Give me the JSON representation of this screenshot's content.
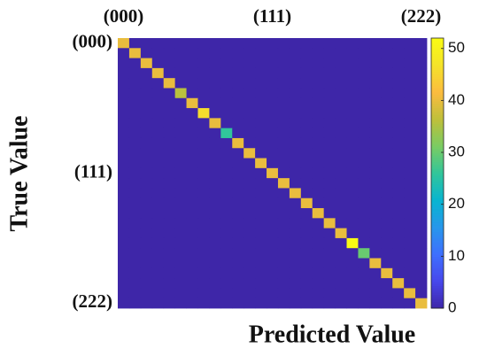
{
  "chart_data": {
    "type": "heatmap",
    "x_label": "Predicted Value",
    "y_label": "True Value",
    "x_categories": [
      "(000)",
      null,
      null,
      null,
      null,
      null,
      null,
      null,
      null,
      null,
      null,
      null,
      null,
      "(111)",
      null,
      null,
      null,
      null,
      null,
      null,
      null,
      null,
      null,
      null,
      null,
      null,
      "(222)"
    ],
    "y_categories": [
      "(000)",
      null,
      null,
      null,
      null,
      null,
      null,
      null,
      null,
      null,
      null,
      null,
      null,
      "(111)",
      null,
      null,
      null,
      null,
      null,
      null,
      null,
      null,
      null,
      null,
      null,
      null,
      "(222)"
    ],
    "colormap": "parula",
    "clim": [
      0,
      52
    ],
    "cticks": [
      0,
      10,
      20,
      30,
      40,
      50
    ],
    "values": [
      [
        40,
        0,
        0,
        0,
        0,
        0,
        0,
        0,
        0,
        0,
        0,
        0,
        0,
        0,
        0,
        0,
        0,
        0,
        0,
        0,
        0,
        0,
        0,
        0,
        0,
        0,
        0
      ],
      [
        0,
        40,
        0,
        0,
        0,
        0,
        0,
        0,
        0,
        0,
        0,
        0,
        0,
        0,
        0,
        0,
        0,
        0,
        0,
        0,
        0,
        0,
        0,
        0,
        0,
        0,
        0
      ],
      [
        0,
        0,
        40,
        0,
        0,
        0,
        0,
        0,
        0,
        0,
        0,
        0,
        0,
        0,
        0,
        0,
        0,
        0,
        0,
        0,
        0,
        0,
        0,
        0,
        0,
        0,
        0
      ],
      [
        0,
        0,
        0,
        40,
        0,
        0,
        0,
        0,
        0,
        0,
        0,
        0,
        0,
        0,
        0,
        0,
        0,
        0,
        0,
        0,
        0,
        0,
        0,
        0,
        0,
        0,
        0
      ],
      [
        0,
        0,
        0,
        0,
        40,
        0,
        0,
        0,
        0,
        0,
        0,
        0,
        0,
        0,
        0,
        0,
        0,
        0,
        0,
        0,
        0,
        0,
        0,
        0,
        0,
        0,
        0
      ],
      [
        0,
        0,
        0,
        0,
        0,
        36,
        0,
        0,
        0,
        0,
        0,
        0,
        0,
        0,
        0,
        0,
        0,
        0,
        0,
        0,
        0,
        0,
        0,
        0,
        0,
        0,
        0
      ],
      [
        0,
        0,
        0,
        0,
        0,
        0,
        40,
        0,
        0,
        0,
        0,
        0,
        0,
        0,
        0,
        0,
        0,
        0,
        0,
        0,
        0,
        0,
        0,
        0,
        0,
        0,
        0
      ],
      [
        0,
        0,
        0,
        0,
        0,
        0,
        0,
        46,
        0,
        0,
        0,
        0,
        0,
        0,
        0,
        0,
        0,
        0,
        0,
        0,
        0,
        0,
        0,
        0,
        0,
        0,
        0
      ],
      [
        0,
        0,
        0,
        0,
        0,
        0,
        0,
        0,
        40,
        0,
        0,
        0,
        0,
        0,
        0,
        0,
        0,
        0,
        0,
        0,
        0,
        0,
        0,
        0,
        0,
        0,
        0
      ],
      [
        0,
        0,
        0,
        0,
        0,
        0,
        0,
        0,
        0,
        26,
        0,
        0,
        0,
        0,
        0,
        0,
        0,
        0,
        0,
        0,
        0,
        0,
        0,
        0,
        0,
        0,
        0
      ],
      [
        0,
        0,
        0,
        0,
        0,
        0,
        0,
        0,
        0,
        0,
        40,
        0,
        0,
        0,
        0,
        0,
        0,
        0,
        0,
        0,
        0,
        0,
        0,
        0,
        0,
        0,
        0
      ],
      [
        0,
        0,
        0,
        0,
        0,
        0,
        0,
        0,
        0,
        0,
        0,
        40,
        0,
        0,
        0,
        0,
        0,
        0,
        0,
        0,
        0,
        0,
        0,
        0,
        0,
        0,
        0
      ],
      [
        0,
        0,
        0,
        0,
        0,
        0,
        0,
        0,
        0,
        0,
        0,
        0,
        40,
        0,
        0,
        0,
        0,
        0,
        0,
        0,
        0,
        0,
        0,
        0,
        0,
        0,
        0
      ],
      [
        0,
        0,
        0,
        0,
        0,
        0,
        0,
        0,
        0,
        0,
        0,
        0,
        0,
        40,
        0,
        0,
        0,
        0,
        0,
        0,
        0,
        0,
        0,
        0,
        0,
        0,
        0
      ],
      [
        0,
        0,
        0,
        0,
        0,
        0,
        0,
        0,
        0,
        0,
        0,
        0,
        0,
        0,
        40,
        0,
        0,
        0,
        0,
        0,
        0,
        0,
        0,
        0,
        0,
        0,
        0
      ],
      [
        0,
        0,
        0,
        0,
        0,
        0,
        0,
        0,
        0,
        0,
        0,
        0,
        0,
        0,
        0,
        40,
        0,
        0,
        0,
        0,
        0,
        0,
        0,
        0,
        0,
        0,
        0
      ],
      [
        0,
        0,
        0,
        0,
        0,
        0,
        0,
        0,
        0,
        0,
        0,
        0,
        0,
        0,
        0,
        0,
        40,
        0,
        0,
        0,
        0,
        0,
        0,
        0,
        0,
        0,
        0
      ],
      [
        0,
        0,
        0,
        0,
        0,
        0,
        0,
        0,
        0,
        0,
        0,
        0,
        0,
        0,
        0,
        0,
        0,
        40,
        0,
        0,
        0,
        0,
        0,
        0,
        0,
        0,
        0
      ],
      [
        0,
        0,
        0,
        0,
        0,
        0,
        0,
        0,
        0,
        0,
        0,
        0,
        0,
        0,
        0,
        0,
        0,
        0,
        40,
        0,
        0,
        0,
        0,
        0,
        0,
        0,
        0
      ],
      [
        0,
        0,
        0,
        0,
        0,
        0,
        0,
        0,
        0,
        0,
        0,
        0,
        0,
        0,
        0,
        0,
        0,
        0,
        0,
        40,
        0,
        0,
        0,
        0,
        0,
        0,
        0
      ],
      [
        0,
        0,
        0,
        0,
        0,
        0,
        0,
        0,
        0,
        0,
        0,
        0,
        0,
        0,
        0,
        0,
        0,
        0,
        0,
        0,
        52,
        0,
        0,
        0,
        0,
        0,
        0
      ],
      [
        0,
        0,
        0,
        0,
        0,
        0,
        0,
        0,
        0,
        0,
        0,
        0,
        0,
        0,
        0,
        0,
        0,
        0,
        0,
        0,
        0,
        30,
        0,
        0,
        0,
        0,
        0
      ],
      [
        0,
        0,
        0,
        0,
        0,
        0,
        0,
        0,
        0,
        0,
        0,
        0,
        0,
        0,
        0,
        0,
        0,
        0,
        0,
        0,
        0,
        0,
        40,
        0,
        0,
        0,
        0
      ],
      [
        0,
        0,
        0,
        0,
        0,
        0,
        0,
        0,
        0,
        0,
        0,
        0,
        0,
        0,
        0,
        0,
        0,
        0,
        0,
        0,
        0,
        0,
        0,
        40,
        0,
        0,
        0
      ],
      [
        0,
        0,
        0,
        0,
        0,
        0,
        0,
        0,
        0,
        0,
        0,
        0,
        0,
        0,
        0,
        0,
        0,
        0,
        0,
        0,
        0,
        0,
        0,
        0,
        40,
        0,
        0
      ],
      [
        0,
        0,
        0,
        0,
        0,
        0,
        0,
        0,
        0,
        0,
        0,
        0,
        0,
        0,
        0,
        0,
        0,
        0,
        0,
        0,
        0,
        0,
        0,
        0,
        0,
        40,
        0
      ],
      [
        0,
        0,
        0,
        0,
        0,
        0,
        0,
        0,
        0,
        0,
        0,
        0,
        0,
        0,
        0,
        0,
        0,
        0,
        0,
        0,
        0,
        0,
        0,
        0,
        0,
        0,
        40
      ]
    ]
  }
}
